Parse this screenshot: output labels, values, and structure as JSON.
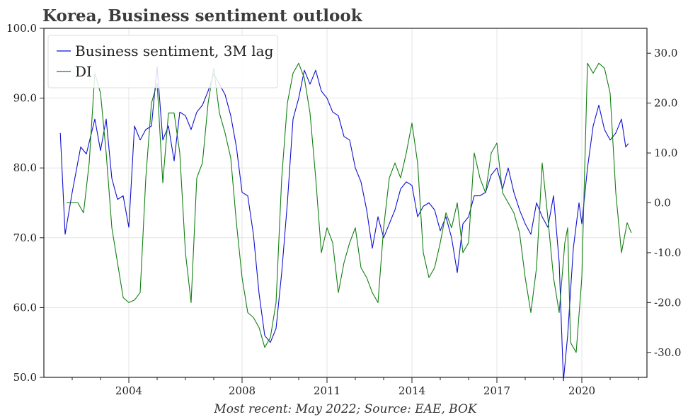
{
  "chart_data": {
    "type": "line",
    "title": "Korea, Business sentiment outlook",
    "footnote": "Most recent: May 2022; Source: EAE, BOK",
    "x_ticks": [
      "2004",
      "2008",
      "2011",
      "2014",
      "2017",
      "2020"
    ],
    "y_left": {
      "ylim": [
        50,
        100
      ],
      "ticks": [
        "50.0",
        "60.0",
        "70.0",
        "80.0",
        "90.0",
        "100.0"
      ]
    },
    "y_right": {
      "ylim": [
        -35,
        35
      ],
      "ticks": [
        "-30.0",
        "-20.0",
        "-10.0",
        "0.0",
        "10.0",
        "20.0",
        "30.0"
      ]
    },
    "grid": true,
    "legend_position": "top-left",
    "series": [
      {
        "name": "Business sentiment, 3M lag",
        "axis": "left",
        "color": "#1010d0",
        "points": [
          [
            2001.58,
            85
          ],
          [
            2001.75,
            70.5
          ],
          [
            2002.0,
            76.5
          ],
          [
            2002.3,
            83
          ],
          [
            2002.5,
            82
          ],
          [
            2002.8,
            87
          ],
          [
            2003.0,
            82.5
          ],
          [
            2003.2,
            87
          ],
          [
            2003.4,
            78.5
          ],
          [
            2003.6,
            75.5
          ],
          [
            2003.8,
            76
          ],
          [
            2004.0,
            71.5
          ],
          [
            2004.2,
            86
          ],
          [
            2004.4,
            84
          ],
          [
            2004.6,
            85.5
          ],
          [
            2004.8,
            86
          ],
          [
            2005.0,
            94.5
          ],
          [
            2005.2,
            84
          ],
          [
            2005.4,
            86
          ],
          [
            2005.6,
            81
          ],
          [
            2005.8,
            88
          ],
          [
            2006.0,
            87.5
          ],
          [
            2006.2,
            85.5
          ],
          [
            2006.4,
            88
          ],
          [
            2006.6,
            89
          ],
          [
            2006.8,
            91
          ],
          [
            2007.0,
            93.5
          ],
          [
            2007.2,
            92
          ],
          [
            2007.4,
            90.5
          ],
          [
            2007.6,
            87.5
          ],
          [
            2007.8,
            83
          ],
          [
            2008.0,
            76.5
          ],
          [
            2008.2,
            76
          ],
          [
            2008.4,
            70.5
          ],
          [
            2008.6,
            62
          ],
          [
            2008.8,
            56
          ],
          [
            2009.0,
            55
          ],
          [
            2009.2,
            57
          ],
          [
            2009.4,
            65
          ],
          [
            2009.6,
            75
          ],
          [
            2009.8,
            87
          ],
          [
            2010.0,
            90
          ],
          [
            2010.2,
            94
          ],
          [
            2010.4,
            92
          ],
          [
            2010.6,
            94
          ],
          [
            2010.8,
            91
          ],
          [
            2011.0,
            90
          ],
          [
            2011.2,
            88
          ],
          [
            2011.4,
            87.5
          ],
          [
            2011.6,
            84.5
          ],
          [
            2011.8,
            84
          ],
          [
            2012.0,
            80
          ],
          [
            2012.2,
            78
          ],
          [
            2012.4,
            74
          ],
          [
            2012.6,
            68.5
          ],
          [
            2012.8,
            73
          ],
          [
            2013.0,
            70
          ],
          [
            2013.2,
            72
          ],
          [
            2013.4,
            74
          ],
          [
            2013.6,
            77
          ],
          [
            2013.8,
            78
          ],
          [
            2014.0,
            77.5
          ],
          [
            2014.2,
            73
          ],
          [
            2014.4,
            74.5
          ],
          [
            2014.6,
            75
          ],
          [
            2014.8,
            74
          ],
          [
            2015.0,
            71
          ],
          [
            2015.2,
            73
          ],
          [
            2015.4,
            70
          ],
          [
            2015.6,
            65
          ],
          [
            2015.8,
            72
          ],
          [
            2016.0,
            73
          ],
          [
            2016.2,
            76
          ],
          [
            2016.4,
            76
          ],
          [
            2016.6,
            76.5
          ],
          [
            2016.8,
            79
          ],
          [
            2017.0,
            80
          ],
          [
            2017.2,
            77
          ],
          [
            2017.4,
            80
          ],
          [
            2017.6,
            76.5
          ],
          [
            2017.8,
            74
          ],
          [
            2018.0,
            72
          ],
          [
            2018.2,
            70.5
          ],
          [
            2018.4,
            75
          ],
          [
            2018.6,
            73
          ],
          [
            2018.8,
            71.5
          ],
          [
            2019.0,
            76
          ],
          [
            2019.2,
            66.5
          ],
          [
            2019.35,
            49.5
          ],
          [
            2019.5,
            56
          ],
          [
            2019.7,
            68.5
          ],
          [
            2019.9,
            75
          ],
          [
            2020.0,
            72
          ],
          [
            2020.2,
            80
          ],
          [
            2020.4,
            86
          ],
          [
            2020.6,
            89
          ],
          [
            2020.8,
            85.5
          ],
          [
            2021.0,
            84
          ],
          [
            2021.2,
            85
          ],
          [
            2021.4,
            87
          ],
          [
            2021.55,
            83
          ],
          [
            2021.65,
            83.5
          ]
        ]
      },
      {
        "name": "DI",
        "axis": "right",
        "color": "#127f12",
        "points": [
          [
            2001.8,
            0
          ],
          [
            2002.0,
            0
          ],
          [
            2002.2,
            0
          ],
          [
            2002.4,
            -2
          ],
          [
            2002.6,
            8
          ],
          [
            2002.8,
            26
          ],
          [
            2003.0,
            22
          ],
          [
            2003.2,
            10
          ],
          [
            2003.4,
            -5
          ],
          [
            2003.6,
            -12
          ],
          [
            2003.8,
            -19
          ],
          [
            2004.0,
            -20
          ],
          [
            2004.2,
            -19.5
          ],
          [
            2004.4,
            -18
          ],
          [
            2004.6,
            5
          ],
          [
            2004.8,
            20
          ],
          [
            2005.0,
            24
          ],
          [
            2005.2,
            4
          ],
          [
            2005.4,
            18
          ],
          [
            2005.6,
            18
          ],
          [
            2005.8,
            10
          ],
          [
            2006.0,
            -10
          ],
          [
            2006.2,
            -20
          ],
          [
            2006.4,
            5
          ],
          [
            2006.6,
            8
          ],
          [
            2006.8,
            20
          ],
          [
            2007.0,
            27
          ],
          [
            2007.2,
            18
          ],
          [
            2007.4,
            14
          ],
          [
            2007.6,
            9
          ],
          [
            2007.8,
            -4
          ],
          [
            2008.0,
            -15
          ],
          [
            2008.2,
            -22
          ],
          [
            2008.4,
            -23
          ],
          [
            2008.6,
            -25
          ],
          [
            2008.8,
            -29
          ],
          [
            2009.0,
            -27
          ],
          [
            2009.2,
            -20
          ],
          [
            2009.4,
            5
          ],
          [
            2009.6,
            20
          ],
          [
            2009.8,
            26
          ],
          [
            2010.0,
            28
          ],
          [
            2010.2,
            25
          ],
          [
            2010.4,
            18
          ],
          [
            2010.6,
            5
          ],
          [
            2010.8,
            -10
          ],
          [
            2011.0,
            -5
          ],
          [
            2011.2,
            -8
          ],
          [
            2011.4,
            -18
          ],
          [
            2011.6,
            -12
          ],
          [
            2011.8,
            -8
          ],
          [
            2012.0,
            -5
          ],
          [
            2012.2,
            -13
          ],
          [
            2012.4,
            -15
          ],
          [
            2012.6,
            -18
          ],
          [
            2012.8,
            -20
          ],
          [
            2013.0,
            -5
          ],
          [
            2013.2,
            5
          ],
          [
            2013.4,
            8
          ],
          [
            2013.6,
            5
          ],
          [
            2013.8,
            10
          ],
          [
            2014.0,
            16
          ],
          [
            2014.2,
            8
          ],
          [
            2014.4,
            -10
          ],
          [
            2014.6,
            -15
          ],
          [
            2014.8,
            -13
          ],
          [
            2015.0,
            -8
          ],
          [
            2015.2,
            -2
          ],
          [
            2015.4,
            -5
          ],
          [
            2015.6,
            0
          ],
          [
            2015.8,
            -10
          ],
          [
            2016.0,
            -8
          ],
          [
            2016.2,
            10
          ],
          [
            2016.4,
            5
          ],
          [
            2016.6,
            2
          ],
          [
            2016.8,
            10
          ],
          [
            2017.0,
            12
          ],
          [
            2017.2,
            2
          ],
          [
            2017.4,
            0
          ],
          [
            2017.6,
            -2
          ],
          [
            2017.8,
            -6
          ],
          [
            2018.0,
            -15
          ],
          [
            2018.2,
            -22
          ],
          [
            2018.4,
            -13
          ],
          [
            2018.6,
            8
          ],
          [
            2018.8,
            -3
          ],
          [
            2019.0,
            -15
          ],
          [
            2019.2,
            -22
          ],
          [
            2019.4,
            -8
          ],
          [
            2019.5,
            -5
          ],
          [
            2019.6,
            -28
          ],
          [
            2019.8,
            -30
          ],
          [
            2020.0,
            -15
          ],
          [
            2020.2,
            28
          ],
          [
            2020.4,
            26
          ],
          [
            2020.6,
            28
          ],
          [
            2020.8,
            27
          ],
          [
            2021.0,
            22
          ],
          [
            2021.2,
            2
          ],
          [
            2021.4,
            -10
          ],
          [
            2021.6,
            -4
          ],
          [
            2021.75,
            -6
          ]
        ]
      }
    ]
  }
}
